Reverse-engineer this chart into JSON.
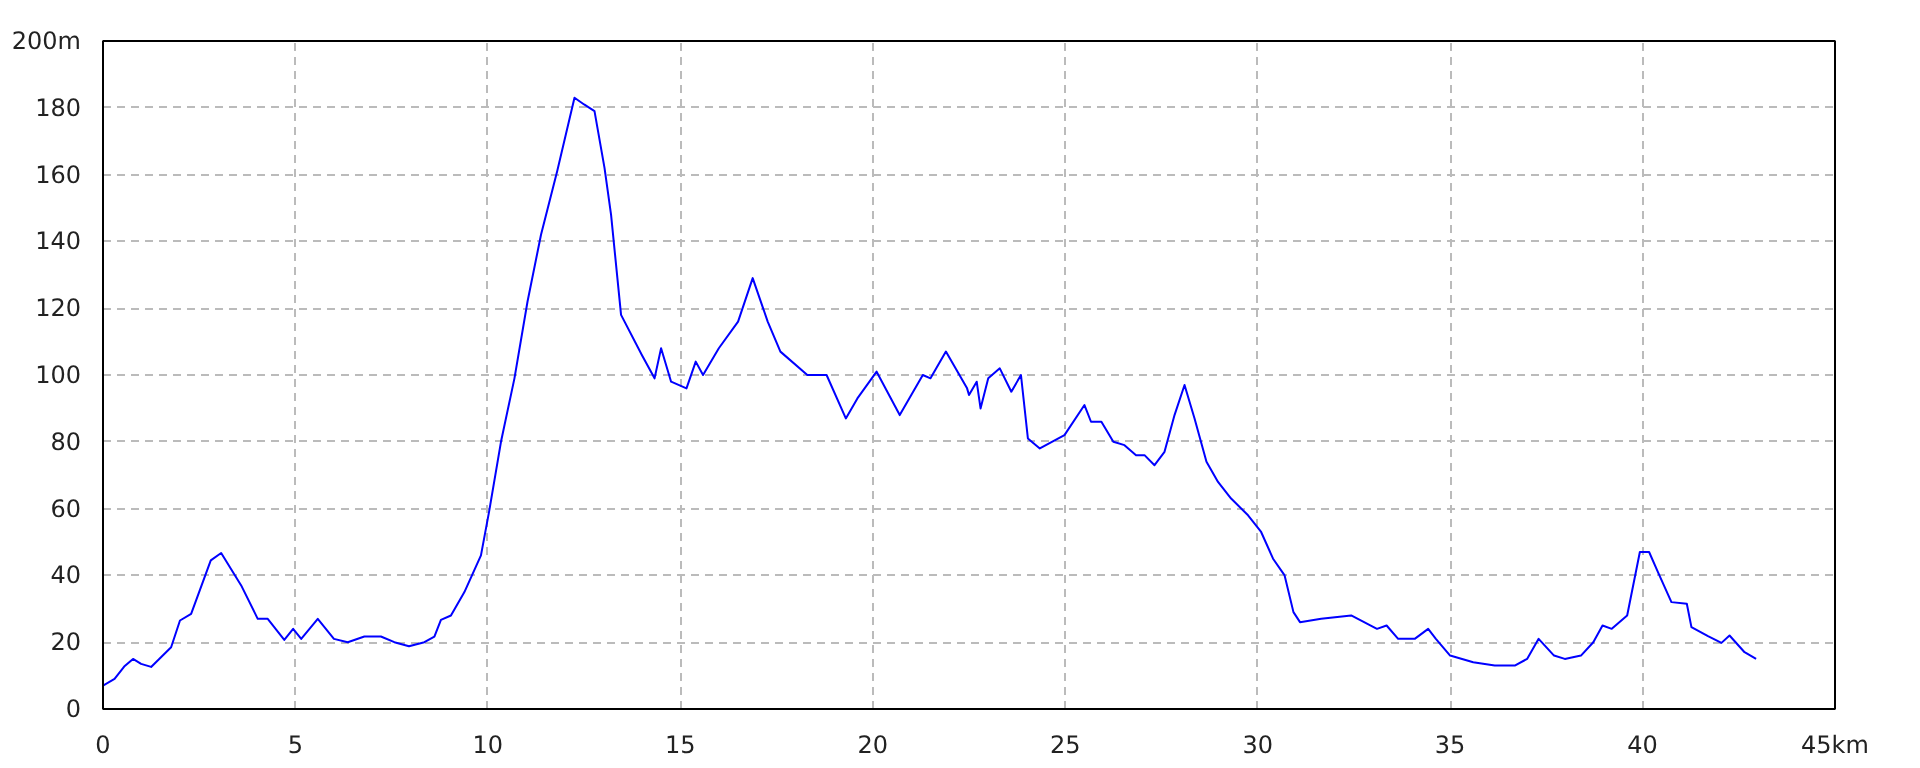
{
  "chart_data": {
    "type": "line",
    "x": [
      0,
      0.3,
      0.55,
      0.78,
      0.99,
      1.25,
      1.77,
      2.0,
      2.29,
      2.8,
      3.07,
      3.59,
      4.02,
      4.28,
      4.71,
      4.94,
      5.15,
      5.58,
      6.0,
      6.36,
      6.79,
      7.22,
      7.57,
      7.95,
      8.35,
      8.61,
      8.78,
      9.04,
      9.39,
      9.82,
      10.03,
      10.34,
      10.69,
      11.03,
      11.38,
      11.8,
      12.25,
      12.5,
      12.77,
      13.03,
      13.2,
      13.46,
      14.0,
      14.33,
      14.5,
      14.76,
      15.16,
      15.4,
      15.59,
      16.0,
      16.5,
      16.88,
      17.27,
      17.6,
      18.3,
      18.8,
      19.3,
      19.6,
      20.1,
      20.7,
      21.3,
      21.5,
      21.9,
      22.45,
      22.5,
      22.7,
      22.8,
      23.0,
      23.3,
      23.6,
      23.85,
      24.03,
      24.34,
      24.98,
      25.5,
      25.67,
      25.94,
      26.25,
      26.54,
      26.84,
      27.06,
      27.32,
      27.58,
      27.84,
      28.1,
      28.36,
      28.67,
      28.97,
      29.31,
      29.75,
      30.09,
      30.4,
      30.7,
      30.93,
      31.1,
      31.65,
      32.43,
      33.1,
      33.35,
      33.65,
      34.08,
      34.43,
      34.63,
      35.0,
      35.6,
      36.16,
      36.68,
      37.0,
      37.3,
      37.7,
      37.98,
      38.4,
      38.72,
      38.96,
      39.2,
      39.6,
      39.93,
      40.17,
      40.4,
      40.75,
      41.15,
      41.27,
      41.7,
      42.05,
      42.26,
      42.65,
      42.95
    ],
    "series": [
      {
        "color": "#0000ff",
        "values": [
          7,
          9,
          12.7,
          15,
          13.5,
          12.6,
          18.5,
          26.5,
          28.5,
          44.5,
          46.7,
          37,
          27,
          27,
          20.7,
          24,
          21,
          27,
          21,
          20,
          21.7,
          21.7,
          20,
          18.8,
          20,
          21.7,
          26.7,
          28,
          35,
          46,
          59,
          80,
          99,
          122,
          142,
          161,
          183,
          181,
          179,
          162,
          148,
          118,
          106,
          99,
          108,
          98,
          96,
          104,
          100,
          108,
          116,
          129,
          116,
          107,
          100,
          100,
          87,
          93,
          101,
          88,
          100,
          99,
          107,
          96,
          94,
          98,
          90,
          99,
          102,
          95,
          100,
          81,
          78,
          82,
          91,
          86,
          86,
          80,
          79,
          76,
          76,
          73,
          77,
          88,
          97,
          87,
          74,
          68,
          63,
          58,
          53,
          45,
          40,
          29,
          26,
          27,
          28,
          24,
          25,
          21,
          21,
          24,
          21,
          16,
          14,
          13,
          13,
          15,
          21,
          16,
          15,
          16,
          20,
          25,
          24,
          28,
          47,
          47,
          41,
          32,
          31.5,
          24.5,
          21.8,
          19.8,
          22,
          17,
          15
        ]
      }
    ],
    "xlim": [
      0,
      45
    ],
    "xticks": [
      0,
      5,
      10,
      15,
      20,
      25,
      30,
      35,
      40,
      {
        "value": 45,
        "label": "45km"
      }
    ],
    "ylim": [
      0,
      200
    ],
    "yticks": [
      0,
      20,
      40,
      60,
      80,
      100,
      120,
      140,
      160,
      180,
      {
        "value": 200,
        "label": "200m"
      }
    ],
    "grid": true,
    "line_style": "solid"
  }
}
